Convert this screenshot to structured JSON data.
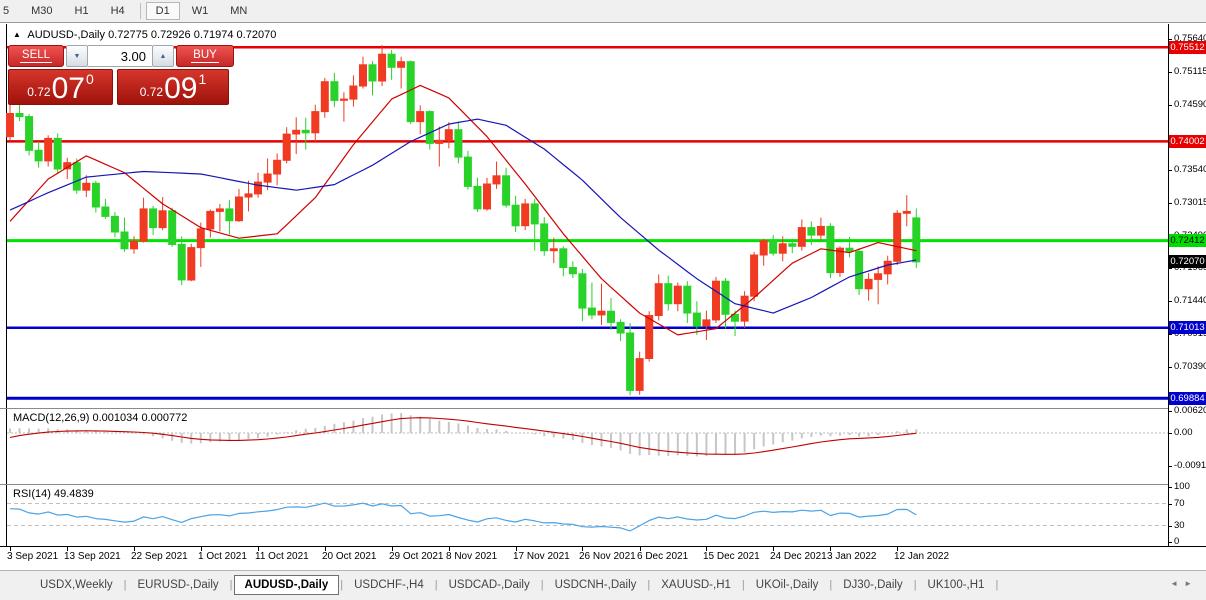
{
  "toolbar": {
    "timeframes": [
      "5",
      "M30",
      "H1",
      "H4",
      "D1",
      "W1",
      "MN"
    ],
    "active": "D1"
  },
  "chart": {
    "title": {
      "arrow": "▲",
      "symbol": "AUDUSD-,Daily",
      "open": "0.72775",
      "high": "0.72926",
      "low": "0.71974",
      "close": "0.72070"
    },
    "trade_panel": {
      "sell_label": "SELL",
      "buy_label": "BUY",
      "volume": "3.00",
      "spinner_down": "▼",
      "spinner_up": "▲",
      "sell_price": {
        "prefix": "0.72",
        "big": "07",
        "sup": "0"
      },
      "buy_price": {
        "prefix": "0.72",
        "big": "09",
        "sup": "1"
      }
    },
    "colors": {
      "bull": "#f03a21",
      "bear": "#28d228",
      "ma_fast": "#d00000",
      "ma_slow": "#1616b4",
      "hline_red": "#e60000",
      "hline_green": "#00e300",
      "hline_blue": "#0000cc",
      "macd_hist": "#c6c6c6",
      "macd_signal": "#c00000",
      "rsi_line": "#4aa3e8"
    },
    "price_axis": {
      "ticks": [
        {
          "label": "0.75640",
          "price": 0.7564
        },
        {
          "label": "0.75115",
          "price": 0.75115
        },
        {
          "label": "0.74590",
          "price": 0.7459
        },
        {
          "label": "0.73540",
          "price": 0.7354
        },
        {
          "label": "0.73015",
          "price": 0.73015
        },
        {
          "label": "0.72490",
          "price": 0.7249
        },
        {
          "label": "0.71965",
          "price": 0.71965
        },
        {
          "label": "0.71440",
          "price": 0.7144
        },
        {
          "label": "0.70915",
          "price": 0.70915
        },
        {
          "label": "0.70390",
          "price": 0.7039
        }
      ],
      "badges": [
        {
          "label": "0.75512",
          "price": 0.75512,
          "bg": "#e60000",
          "fg": "#ffffff"
        },
        {
          "label": "0.74002",
          "price": 0.74002,
          "bg": "#e60000",
          "fg": "#ffffff"
        },
        {
          "label": "0.72412",
          "price": 0.72412,
          "bg": "#00dd00",
          "fg": "#000000"
        },
        {
          "label": "0.72070",
          "price": 0.7207,
          "bg": "#000000",
          "fg": "#ffffff"
        },
        {
          "label": "0.71013",
          "price": 0.71013,
          "bg": "#0000cc",
          "fg": "#ffffff"
        },
        {
          "label": "0.69884",
          "price": 0.69884,
          "bg": "#0000cc",
          "fg": "#ffffff"
        }
      ]
    },
    "hlines": [
      {
        "price": 0.75512,
        "color": "#e60000",
        "width": 2.5
      },
      {
        "price": 0.74002,
        "color": "#e60000",
        "width": 2.5
      },
      {
        "price": 0.72412,
        "color": "#00e300",
        "width": 3
      },
      {
        "price": 0.71013,
        "color": "#0000cc",
        "width": 2.5
      },
      {
        "price": 0.69884,
        "color": "#0000cc",
        "width": 3
      }
    ],
    "macd": {
      "name": "MACD(12,26,9)",
      "value_main": "0.001034",
      "value_signal": "0.000772",
      "axis": [
        {
          "label": "0.006201",
          "v": 0.006201
        },
        {
          "label": "0.00",
          "v": 0.0
        },
        {
          "label": "-0.00919",
          "v": -0.00919
        }
      ]
    },
    "rsi": {
      "name": "RSI(14)",
      "value": "49.4839",
      "axis": [
        {
          "label": "100",
          "v": 100
        },
        {
          "label": "70",
          "v": 70
        },
        {
          "label": "30",
          "v": 30
        },
        {
          "label": "0",
          "v": 0
        }
      ],
      "levels": [
        70,
        30
      ]
    },
    "time_axis": [
      {
        "text": "3 Sep 2021",
        "index": 0
      },
      {
        "text": "13 Sep 2021",
        "index": 6
      },
      {
        "text": "22 Sep 2021",
        "index": 13
      },
      {
        "text": "1 Oct 2021",
        "index": 20
      },
      {
        "text": "11 Oct 2021",
        "index": 26
      },
      {
        "text": "20 Oct 2021",
        "index": 33
      },
      {
        "text": "29 Oct 2021",
        "index": 40
      },
      {
        "text": "8 Nov 2021",
        "index": 46
      },
      {
        "text": "17 Nov 2021",
        "index": 53
      },
      {
        "text": "26 Nov 2021",
        "index": 60
      },
      {
        "text": "6 Dec 2021",
        "index": 66
      },
      {
        "text": "15 Dec 2021",
        "index": 73
      },
      {
        "text": "24 Dec 2021",
        "index": 80
      },
      {
        "text": "3 Jan 2022",
        "index": 86
      },
      {
        "text": "12 Jan 2022",
        "index": 93
      }
    ]
  },
  "chart_data": {
    "type": "candlestick",
    "note_color_convention": "red = up candle, green = down candle",
    "candles": [
      [
        0.7408,
        0.7478,
        0.7402,
        0.7445
      ],
      [
        0.7445,
        0.7462,
        0.7433,
        0.744
      ],
      [
        0.744,
        0.7444,
        0.7378,
        0.7386
      ],
      [
        0.7386,
        0.74,
        0.7358,
        0.7369
      ],
      [
        0.7369,
        0.741,
        0.736,
        0.7405
      ],
      [
        0.7405,
        0.7413,
        0.7348,
        0.7356
      ],
      [
        0.7356,
        0.7374,
        0.734,
        0.7366
      ],
      [
        0.7366,
        0.7373,
        0.7316,
        0.7322
      ],
      [
        0.7322,
        0.7346,
        0.7311,
        0.7333
      ],
      [
        0.7333,
        0.7337,
        0.7286,
        0.7295
      ],
      [
        0.7295,
        0.7308,
        0.7276,
        0.728
      ],
      [
        0.728,
        0.7287,
        0.7247,
        0.7255
      ],
      [
        0.7255,
        0.7278,
        0.7223,
        0.7228
      ],
      [
        0.7228,
        0.7248,
        0.722,
        0.724
      ],
      [
        0.724,
        0.731,
        0.7238,
        0.7292
      ],
      [
        0.7292,
        0.7297,
        0.725,
        0.7262
      ],
      [
        0.7262,
        0.7311,
        0.7258,
        0.7289
      ],
      [
        0.7289,
        0.7294,
        0.7231,
        0.7235
      ],
      [
        0.7235,
        0.7248,
        0.717,
        0.7178
      ],
      [
        0.7178,
        0.7236,
        0.7176,
        0.723
      ],
      [
        0.723,
        0.727,
        0.7199,
        0.726
      ],
      [
        0.726,
        0.7291,
        0.7246,
        0.7288
      ],
      [
        0.7288,
        0.73,
        0.7256,
        0.7292
      ],
      [
        0.7292,
        0.7306,
        0.7251,
        0.7273
      ],
      [
        0.7273,
        0.7324,
        0.7271,
        0.7311
      ],
      [
        0.7311,
        0.7337,
        0.7288,
        0.7316
      ],
      [
        0.7316,
        0.735,
        0.731,
        0.7335
      ],
      [
        0.7335,
        0.7373,
        0.7322,
        0.7348
      ],
      [
        0.7348,
        0.7381,
        0.733,
        0.737
      ],
      [
        0.737,
        0.7423,
        0.7365,
        0.7412
      ],
      [
        0.7412,
        0.7439,
        0.738,
        0.7418
      ],
      [
        0.7418,
        0.7438,
        0.7387,
        0.7414
      ],
      [
        0.7414,
        0.7459,
        0.74,
        0.7448
      ],
      [
        0.7448,
        0.7502,
        0.7438,
        0.7496
      ],
      [
        0.7496,
        0.751,
        0.7455,
        0.7466
      ],
      [
        0.7466,
        0.7479,
        0.7432,
        0.7468
      ],
      [
        0.7468,
        0.7506,
        0.7456,
        0.7489
      ],
      [
        0.7489,
        0.7536,
        0.7485,
        0.7523
      ],
      [
        0.7523,
        0.7529,
        0.7474,
        0.7497
      ],
      [
        0.7497,
        0.7555,
        0.7489,
        0.754
      ],
      [
        0.754,
        0.7547,
        0.7499,
        0.7519
      ],
      [
        0.7519,
        0.7536,
        0.7485,
        0.7528
      ],
      [
        0.7528,
        0.753,
        0.7428,
        0.7432
      ],
      [
        0.7432,
        0.7458,
        0.7412,
        0.7448
      ],
      [
        0.7448,
        0.745,
        0.7387,
        0.7397
      ],
      [
        0.7397,
        0.7424,
        0.736,
        0.7402
      ],
      [
        0.7402,
        0.7431,
        0.7389,
        0.7419
      ],
      [
        0.7419,
        0.7432,
        0.7365,
        0.7375
      ],
      [
        0.7375,
        0.7385,
        0.7323,
        0.7328
      ],
      [
        0.7328,
        0.7342,
        0.7287,
        0.7292
      ],
      [
        0.7292,
        0.7342,
        0.7289,
        0.7332
      ],
      [
        0.7332,
        0.7368,
        0.7324,
        0.7345
      ],
      [
        0.7345,
        0.7358,
        0.7294,
        0.7298
      ],
      [
        0.7298,
        0.7313,
        0.7255,
        0.7265
      ],
      [
        0.7265,
        0.7308,
        0.7258,
        0.73
      ],
      [
        0.73,
        0.7308,
        0.7225,
        0.7268
      ],
      [
        0.7268,
        0.7279,
        0.7217,
        0.7225
      ],
      [
        0.7225,
        0.7246,
        0.7205,
        0.7228
      ],
      [
        0.7228,
        0.7232,
        0.7184,
        0.7198
      ],
      [
        0.7198,
        0.7208,
        0.7181,
        0.7188
      ],
      [
        0.7188,
        0.7196,
        0.7112,
        0.7133
      ],
      [
        0.7133,
        0.7174,
        0.7115,
        0.7122
      ],
      [
        0.7122,
        0.7172,
        0.7106,
        0.7128
      ],
      [
        0.7128,
        0.7149,
        0.7098,
        0.711
      ],
      [
        0.711,
        0.7115,
        0.708,
        0.7093
      ],
      [
        0.7093,
        0.7109,
        0.6993,
        0.7001
      ],
      [
        0.7001,
        0.7063,
        0.6994,
        0.7052
      ],
      [
        0.7052,
        0.7128,
        0.7047,
        0.7121
      ],
      [
        0.7121,
        0.7187,
        0.7113,
        0.7172
      ],
      [
        0.7172,
        0.7185,
        0.7129,
        0.714
      ],
      [
        0.714,
        0.7174,
        0.7128,
        0.7168
      ],
      [
        0.7168,
        0.7176,
        0.7109,
        0.7125
      ],
      [
        0.7125,
        0.7144,
        0.709,
        0.7104
      ],
      [
        0.7104,
        0.7129,
        0.7082,
        0.7114
      ],
      [
        0.7114,
        0.7183,
        0.7109,
        0.7176
      ],
      [
        0.7176,
        0.7181,
        0.71,
        0.7123
      ],
      [
        0.7123,
        0.7129,
        0.7088,
        0.7112
      ],
      [
        0.7112,
        0.716,
        0.7101,
        0.7152
      ],
      [
        0.7152,
        0.7223,
        0.7144,
        0.7218
      ],
      [
        0.7218,
        0.7244,
        0.7201,
        0.7241
      ],
      [
        0.7241,
        0.725,
        0.7217,
        0.7221
      ],
      [
        0.7221,
        0.7248,
        0.7208,
        0.7236
      ],
      [
        0.7236,
        0.7244,
        0.7221,
        0.7232
      ],
      [
        0.7232,
        0.7275,
        0.7225,
        0.7262
      ],
      [
        0.7262,
        0.7272,
        0.7234,
        0.725
      ],
      [
        0.725,
        0.7278,
        0.7241,
        0.7264
      ],
      [
        0.7264,
        0.7269,
        0.7181,
        0.719
      ],
      [
        0.719,
        0.7232,
        0.7183,
        0.7229
      ],
      [
        0.7229,
        0.7247,
        0.7214,
        0.7224
      ],
      [
        0.7224,
        0.7229,
        0.7154,
        0.7164
      ],
      [
        0.7164,
        0.7189,
        0.7145,
        0.7179
      ],
      [
        0.7179,
        0.72,
        0.7139,
        0.7188
      ],
      [
        0.7188,
        0.7217,
        0.7171,
        0.7208
      ],
      [
        0.7208,
        0.729,
        0.7202,
        0.7285
      ],
      [
        0.7285,
        0.7314,
        0.7264,
        0.7288
      ],
      [
        0.72775,
        0.72926,
        0.71974,
        0.7207
      ]
    ],
    "ma_fast_points": [
      [
        0,
        0.7272
      ],
      [
        4,
        0.734
      ],
      [
        8,
        0.7377
      ],
      [
        12,
        0.735
      ],
      [
        16,
        0.73
      ],
      [
        20,
        0.7262
      ],
      [
        24,
        0.7245
      ],
      [
        28,
        0.7252
      ],
      [
        32,
        0.731
      ],
      [
        36,
        0.7395
      ],
      [
        40,
        0.7468
      ],
      [
        43,
        0.749
      ],
      [
        46,
        0.747
      ],
      [
        50,
        0.7408
      ],
      [
        54,
        0.7332
      ],
      [
        58,
        0.7252
      ],
      [
        62,
        0.718
      ],
      [
        66,
        0.7125
      ],
      [
        70,
        0.709
      ],
      [
        74,
        0.71
      ],
      [
        78,
        0.715
      ],
      [
        82,
        0.7205
      ],
      [
        85,
        0.7228
      ],
      [
        88,
        0.7222
      ],
      [
        91,
        0.7238
      ],
      [
        95,
        0.7225
      ]
    ],
    "ma_slow_points": [
      [
        0,
        0.729
      ],
      [
        4,
        0.7318
      ],
      [
        8,
        0.7343
      ],
      [
        14,
        0.7352
      ],
      [
        20,
        0.7348
      ],
      [
        26,
        0.733
      ],
      [
        30,
        0.7322
      ],
      [
        34,
        0.7331
      ],
      [
        38,
        0.7362
      ],
      [
        42,
        0.74
      ],
      [
        46,
        0.7428
      ],
      [
        49,
        0.7436
      ],
      [
        52,
        0.7426
      ],
      [
        56,
        0.7388
      ],
      [
        60,
        0.7338
      ],
      [
        64,
        0.7278
      ],
      [
        68,
        0.7226
      ],
      [
        72,
        0.718
      ],
      [
        76,
        0.714
      ],
      [
        80,
        0.7125
      ],
      [
        84,
        0.715
      ],
      [
        88,
        0.7183
      ],
      [
        92,
        0.7202
      ],
      [
        95,
        0.721
      ]
    ],
    "macd_hist": [
      0.0013,
      0.00135,
      0.0013,
      0.00125,
      0.0013,
      0.0011,
      0.001,
      0.0008,
      0.0008,
      0.0005,
      0.0003,
      0.0001,
      5e-05,
      -0.0001,
      -0.0004,
      -0.0009,
      -0.0015,
      -0.0022,
      -0.0028,
      -0.003,
      -0.0029,
      -0.0026,
      -0.0024,
      -0.0023,
      -0.002,
      -0.0017,
      -0.0014,
      -0.001,
      -0.0004,
      0.0002,
      0.0008,
      0.0012,
      0.0014,
      0.002,
      0.0026,
      0.003,
      0.0035,
      0.0042,
      0.0046,
      0.0052,
      0.0055,
      0.0056,
      0.005,
      0.0046,
      0.004,
      0.0035,
      0.0031,
      0.0027,
      0.0021,
      0.0014,
      0.0011,
      0.001,
      0.0006,
      0.0001,
      -0.0001,
      -0.0004,
      -0.0009,
      -0.0012,
      -0.0016,
      -0.002,
      -0.0028,
      -0.0034,
      -0.0038,
      -0.0042,
      -0.0049,
      -0.0059,
      -0.0063,
      -0.0062,
      -0.0064,
      -0.0065,
      -0.0063,
      -0.0064,
      -0.0066,
      -0.0065,
      -0.006,
      -0.0061,
      -0.006,
      -0.0055,
      -0.0046,
      -0.0038,
      -0.0032,
      -0.0026,
      -0.0021,
      -0.0015,
      -0.0011,
      -0.0007,
      -0.0009,
      -0.0007,
      -0.0006,
      -0.001,
      -0.0009,
      -0.0006,
      -0.0001,
      0.0005,
      0.001,
      0.001034
    ]
  },
  "tabs": {
    "items": [
      "USDX,Weekly",
      "EURUSD-,Daily",
      "AUDUSD-,Daily",
      "USDCHF-,H4",
      "USDCAD-,Daily",
      "USDCNH-,Daily",
      "XAUUSD-,H1",
      "UKOil-,Daily",
      "DJ30-,Daily",
      "UK100-,H1"
    ],
    "active_index": 2,
    "separator": "|",
    "scroll_left": "◄",
    "scroll_right": "►"
  }
}
